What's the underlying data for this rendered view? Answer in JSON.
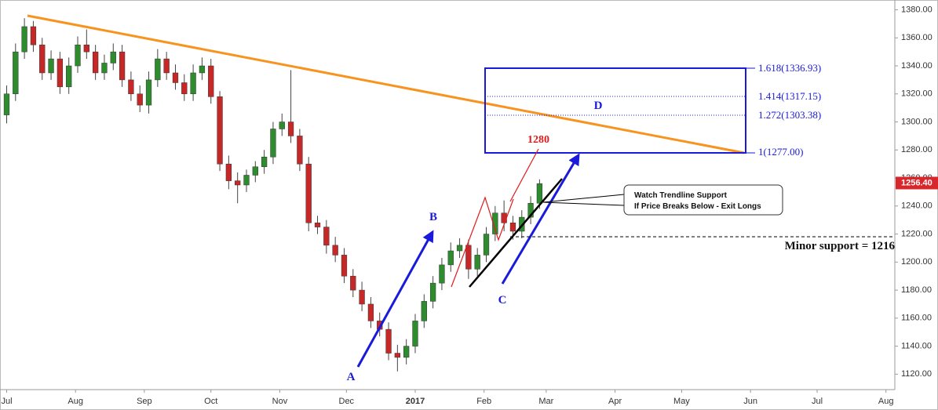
{
  "chart_data": {
    "type": "candlestick",
    "x": [
      0,
      4,
      8,
      12,
      16,
      20,
      24,
      28,
      32,
      36,
      40,
      44,
      48,
      52,
      56,
      60,
      64,
      68,
      72,
      76,
      80,
      84,
      88,
      92,
      96,
      100,
      104,
      108,
      112,
      116,
      120,
      124,
      128,
      132,
      136,
      140,
      144,
      148,
      152,
      156,
      160,
      164,
      168,
      172,
      176,
      180,
      184,
      188,
      192,
      196,
      200,
      204,
      208,
      212,
      216,
      220,
      224,
      228,
      232,
      236,
      240
    ],
    "open": [
      1305,
      1320,
      1350,
      1368,
      1355,
      1335,
      1345,
      1325,
      1340,
      1355,
      1350,
      1335,
      1342,
      1350,
      1330,
      1320,
      1312,
      1330,
      1345,
      1335,
      1328,
      1320,
      1335,
      1340,
      1318,
      1270,
      1258,
      1255,
      1262,
      1268,
      1275,
      1295,
      1300,
      1290,
      1270,
      1228,
      1225,
      1212,
      1205,
      1190,
      1180,
      1170,
      1158,
      1152,
      1135,
      1132,
      1140,
      1158,
      1172,
      1185,
      1198,
      1208,
      1212,
      1195,
      1205,
      1220,
      1235,
      1228,
      1222,
      1232,
      1242
    ],
    "high": [
      1326,
      1356,
      1374,
      1372,
      1360,
      1351,
      1350,
      1346,
      1361,
      1366,
      1355,
      1348,
      1356,
      1355,
      1336,
      1326,
      1336,
      1352,
      1350,
      1341,
      1334,
      1341,
      1346,
      1345,
      1322,
      1276,
      1264,
      1266,
      1272,
      1280,
      1300,
      1306,
      1337,
      1295,
      1275,
      1233,
      1230,
      1218,
      1210,
      1195,
      1186,
      1175,
      1164,
      1157,
      1141,
      1145,
      1163,
      1177,
      1190,
      1203,
      1214,
      1217,
      1216,
      1210,
      1225,
      1240,
      1244,
      1233,
      1237,
      1247,
      1259
    ],
    "low": [
      1299,
      1315,
      1345,
      1350,
      1330,
      1330,
      1320,
      1320,
      1335,
      1345,
      1330,
      1330,
      1337,
      1325,
      1315,
      1307,
      1306,
      1325,
      1330,
      1323,
      1315,
      1315,
      1330,
      1313,
      1265,
      1252,
      1242,
      1250,
      1257,
      1263,
      1270,
      1290,
      1285,
      1265,
      1222,
      1220,
      1206,
      1200,
      1185,
      1175,
      1165,
      1153,
      1147,
      1130,
      1122,
      1127,
      1135,
      1153,
      1167,
      1180,
      1193,
      1203,
      1188,
      1190,
      1200,
      1215,
      1222,
      1216,
      1217,
      1227,
      1238
    ],
    "close": [
      1320,
      1350,
      1368,
      1355,
      1335,
      1345,
      1325,
      1340,
      1355,
      1350,
      1335,
      1342,
      1350,
      1330,
      1320,
      1312,
      1330,
      1345,
      1335,
      1328,
      1320,
      1335,
      1340,
      1318,
      1270,
      1258,
      1255,
      1262,
      1268,
      1275,
      1295,
      1300,
      1290,
      1270,
      1228,
      1225,
      1212,
      1205,
      1190,
      1180,
      1170,
      1158,
      1152,
      1135,
      1132,
      1140,
      1158,
      1172,
      1185,
      1198,
      1208,
      1212,
      1195,
      1205,
      1220,
      1235,
      1228,
      1222,
      1232,
      1242,
      1256
    ],
    "up_color": "#2e8b2e",
    "down_color": "#c62828",
    "xlim": [
      -3,
      400
    ],
    "xticks": [
      {
        "value": 0,
        "label": "Jul"
      },
      {
        "value": 31,
        "label": "Aug"
      },
      {
        "value": 62,
        "label": "Sep"
      },
      {
        "value": 92,
        "label": "Oct"
      },
      {
        "value": 123,
        "label": "Nov"
      },
      {
        "value": 153,
        "label": "Dec"
      },
      {
        "value": 184,
        "label": "2017"
      },
      {
        "value": 215,
        "label": "Feb"
      },
      {
        "value": 243,
        "label": "Mar"
      },
      {
        "value": 274,
        "label": "Apr"
      },
      {
        "value": 304,
        "label": "May"
      },
      {
        "value": 335,
        "label": "Jun"
      },
      {
        "value": 365,
        "label": "Jul"
      },
      {
        "value": 396,
        "label": "Aug"
      }
    ],
    "ylim": [
      1109,
      1387
    ],
    "yticks": [
      {
        "value": 1120,
        "label": "1120.00"
      },
      {
        "value": 1140,
        "label": "1140.00"
      },
      {
        "value": 1160,
        "label": "1160.00"
      },
      {
        "value": 1180,
        "label": "1180.00"
      },
      {
        "value": 1200,
        "label": "1200.00"
      },
      {
        "value": 1220,
        "label": "1220.00"
      },
      {
        "value": 1240,
        "label": "1240.00"
      },
      {
        "value": 1260,
        "label": "1260.00"
      },
      {
        "value": 1280,
        "label": "1280.00"
      },
      {
        "value": 1300,
        "label": "1300.00"
      },
      {
        "value": 1320,
        "label": "1320.00"
      },
      {
        "value": 1340,
        "label": "1340.00"
      },
      {
        "value": 1360,
        "label": "1360.00"
      },
      {
        "value": 1380,
        "label": "1380.00"
      }
    ],
    "last_price": {
      "value": 1256.4,
      "label": "1256.40"
    },
    "annotations": {
      "target": "1280",
      "wave_a": "A",
      "wave_b": "B",
      "wave_c": "C",
      "zone_d": "D",
      "fib_1": "1(1277.00)",
      "fib_1272": "1.272(1303.38)",
      "fib_1414": "1.414(1317.15)",
      "fib_1618": "1.618(1336.93)",
      "callout_line1": "Watch Trendline Support",
      "callout_line2": "If Price Breaks Below - Exit Longs",
      "minor_support": "Minor support = 1216"
    }
  }
}
